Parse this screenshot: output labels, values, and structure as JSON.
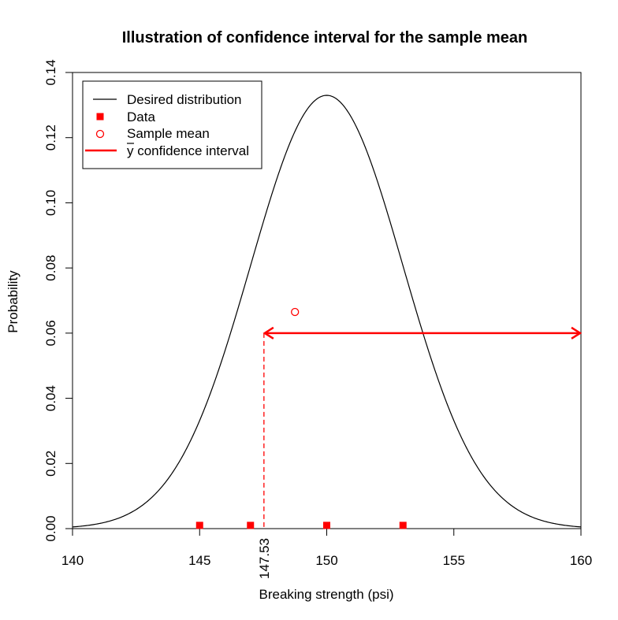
{
  "chart_data": {
    "type": "line",
    "title": "Illustration of confidence interval for the sample mean",
    "xlabel": "Breaking strength (psi)",
    "ylabel": "Probability",
    "xlim": [
      140,
      160
    ],
    "ylim": [
      0,
      0.14
    ],
    "x_ticks": [
      "140",
      "145",
      "150",
      "155",
      "160"
    ],
    "x_tick_values": [
      140,
      145,
      150,
      155,
      160
    ],
    "y_ticks": [
      "0.00",
      "0.02",
      "0.04",
      "0.06",
      "0.08",
      "0.10",
      "0.12",
      "0.14"
    ],
    "y_tick_values": [
      0,
      0.02,
      0.04,
      0.06,
      0.08,
      0.1,
      0.12,
      0.14
    ],
    "grid": false,
    "legend_position": "top-left",
    "distribution": {
      "type": "normal",
      "mean": 150,
      "sd": 3
    },
    "data_points": [
      {
        "x": 145,
        "y": 0.001
      },
      {
        "x": 147,
        "y": 0.001
      },
      {
        "x": 150,
        "y": 0.001
      },
      {
        "x": 153,
        "y": 0.001
      }
    ],
    "sample_mean": {
      "x": 148.75,
      "y": 0.0665
    },
    "confidence_interval": {
      "lower": 147.53,
      "upper": 160,
      "y": 0.06,
      "label": "147.53"
    },
    "legend": [
      {
        "label": "Desired distribution",
        "symbol": "line",
        "color": "#000000"
      },
      {
        "label": "Data",
        "symbol": "square",
        "color": "#ff0000"
      },
      {
        "label": "Sample mean",
        "symbol": "circle",
        "color": "#ff0000"
      },
      {
        "label": "y confidence interval",
        "symbol": "thick-line",
        "color": "#ff0000"
      }
    ],
    "colors": {
      "curve": "#000000",
      "accent": "#ff0000"
    }
  }
}
